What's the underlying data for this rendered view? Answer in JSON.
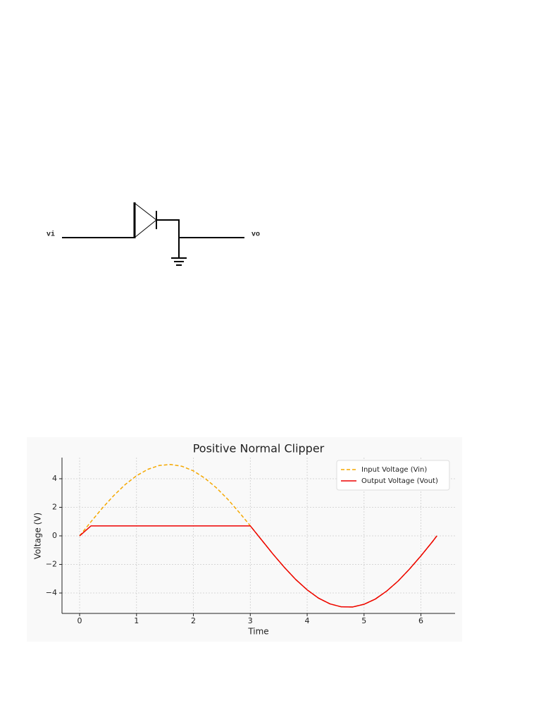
{
  "diagram": {
    "labels": [
      "vi",
      "vo"
    ]
  },
  "chart_data": {
    "type": "line",
    "title": "Positive Normal Clipper",
    "xlabel": "Time",
    "ylabel": "Voltage (V)",
    "x": [
      0,
      0.2,
      0.4,
      0.6,
      0.8,
      1.0,
      1.2,
      1.4,
      1.6,
      1.8,
      2.0,
      2.2,
      2.4,
      2.6,
      2.8,
      3.0,
      3.2,
      3.4,
      3.6,
      3.8,
      4.0,
      4.2,
      4.4,
      4.6,
      4.8,
      5.0,
      5.2,
      5.4,
      5.6,
      5.8,
      6.0,
      6.2,
      6.28
    ],
    "series": [
      {
        "name": "Input Voltage (Vin)",
        "color": "#f5a800",
        "style": "dashed",
        "values": [
          0,
          0.99,
          1.95,
          2.82,
          3.59,
          4.21,
          4.66,
          4.93,
          5.0,
          4.87,
          4.55,
          4.04,
          3.38,
          2.58,
          1.67,
          0.71,
          -0.29,
          -1.28,
          -2.21,
          -3.06,
          -3.78,
          -4.36,
          -4.76,
          -4.97,
          -4.98,
          -4.79,
          -4.42,
          -3.86,
          -3.16,
          -2.32,
          -1.4,
          -0.42,
          0
        ]
      },
      {
        "name": "Output Voltage (Vout)",
        "color": "#ee0000",
        "style": "solid",
        "values": [
          0,
          0.7,
          0.7,
          0.7,
          0.7,
          0.7,
          0.7,
          0.7,
          0.7,
          0.7,
          0.7,
          0.7,
          0.7,
          0.7,
          0.7,
          0.7,
          -0.29,
          -1.28,
          -2.21,
          -3.06,
          -3.78,
          -4.36,
          -4.76,
          -4.97,
          -4.98,
          -4.79,
          -4.42,
          -3.86,
          -3.16,
          -2.32,
          -1.4,
          -0.42,
          0
        ]
      }
    ],
    "xlim": [
      -0.31,
      6.6
    ],
    "ylim": [
      -5.43,
      5.48
    ],
    "xticks": [
      0,
      1,
      2,
      3,
      4,
      5,
      6
    ],
    "yticks": [
      {
        "value": -4,
        "label": "−4"
      },
      {
        "value": -2,
        "label": "−2"
      },
      0,
      2,
      4
    ],
    "grid": true,
    "legend": "upper-right"
  }
}
